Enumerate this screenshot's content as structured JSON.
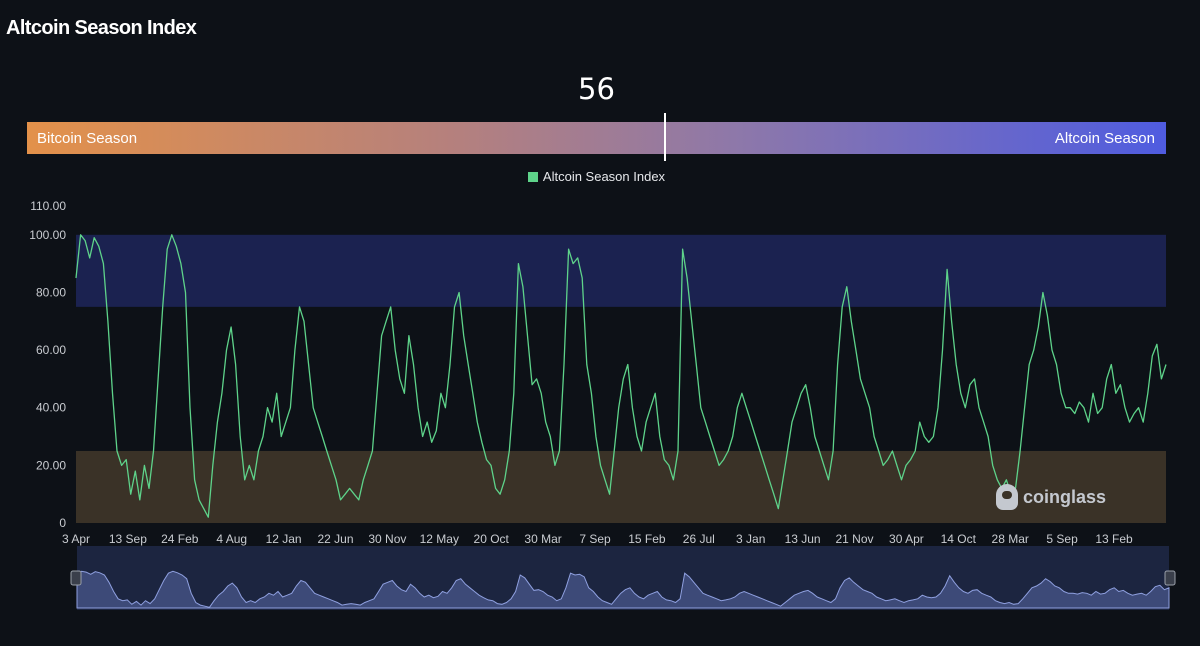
{
  "header": {
    "title": "Altcoin Season Index"
  },
  "gauge": {
    "value": 56,
    "value_text": "56",
    "left_label": "Bitcoin Season",
    "right_label": "Altcoin Season",
    "colors": {
      "left": "#e3914a",
      "right": "#4f5ce0"
    }
  },
  "legend": {
    "label": "Altcoin Season Index",
    "color": "#5ed38a"
  },
  "watermark": {
    "text": "coinglass"
  },
  "chart_data": {
    "type": "line",
    "series": [
      {
        "name": "Altcoin Season Index",
        "color": "#5ed38a",
        "values": [
          85,
          100,
          98,
          92,
          99,
          96,
          90,
          70,
          45,
          25,
          20,
          22,
          10,
          18,
          8,
          20,
          12,
          25,
          50,
          75,
          95,
          100,
          96,
          90,
          80,
          40,
          15,
          8,
          5,
          2,
          20,
          35,
          45,
          60,
          68,
          55,
          30,
          15,
          20,
          15,
          25,
          30,
          40,
          35,
          45,
          30,
          35,
          40,
          60,
          75,
          70,
          55,
          40,
          35,
          30,
          25,
          20,
          15,
          8,
          10,
          12,
          10,
          8,
          15,
          20,
          25,
          45,
          65,
          70,
          75,
          60,
          50,
          45,
          65,
          55,
          40,
          30,
          35,
          28,
          32,
          45,
          40,
          55,
          75,
          80,
          65,
          55,
          45,
          35,
          28,
          22,
          20,
          12,
          10,
          15,
          25,
          45,
          90,
          82,
          65,
          48,
          50,
          45,
          35,
          30,
          20,
          25,
          55,
          95,
          90,
          92,
          85,
          55,
          45,
          30,
          20,
          15,
          10,
          25,
          40,
          50,
          55,
          40,
          30,
          25,
          35,
          40,
          45,
          30,
          22,
          20,
          15,
          25,
          95,
          85,
          70,
          55,
          40,
          35,
          30,
          25,
          20,
          22,
          25,
          30,
          40,
          45,
          40,
          35,
          30,
          25,
          20,
          15,
          10,
          5,
          15,
          25,
          35,
          40,
          45,
          48,
          40,
          30,
          25,
          20,
          15,
          25,
          55,
          75,
          82,
          70,
          60,
          50,
          45,
          40,
          30,
          25,
          20,
          22,
          25,
          20,
          15,
          20,
          22,
          25,
          35,
          30,
          28,
          30,
          40,
          60,
          88,
          70,
          55,
          45,
          40,
          48,
          50,
          40,
          35,
          30,
          20,
          15,
          12,
          15,
          10,
          12,
          25,
          40,
          55,
          60,
          68,
          80,
          72,
          60,
          55,
          45,
          40,
          40,
          38,
          42,
          40,
          35,
          45,
          38,
          40,
          50,
          55,
          45,
          48,
          40,
          35,
          38,
          40,
          35,
          45,
          58,
          62,
          50,
          55
        ]
      }
    ],
    "x_tick_labels": [
      "3 Apr",
      "13 Sep",
      "24 Feb",
      "4 Aug",
      "12 Jan",
      "22 Jun",
      "30 Nov",
      "12 May",
      "20 Oct",
      "30 Mar",
      "7 Sep",
      "15 Feb",
      "26 Jul",
      "3 Jan",
      "13 Jun",
      "21 Nov",
      "30 Apr",
      "14 Oct",
      "28 Mar",
      "5 Sep",
      "13 Feb"
    ],
    "y_ticks": [
      0,
      20,
      40,
      60,
      80,
      100,
      110
    ],
    "y_tick_labels": [
      "0",
      "20.00",
      "40.00",
      "60.00",
      "80.00",
      "100.00",
      "110.00"
    ],
    "ylim": [
      0,
      110
    ],
    "bands": [
      {
        "from": 75,
        "to": 100,
        "color": "#1b2250"
      },
      {
        "from": 0,
        "to": 25,
        "color": "#3a3227"
      }
    ],
    "grid": false,
    "legend_position": "top-center",
    "navigator": true
  }
}
